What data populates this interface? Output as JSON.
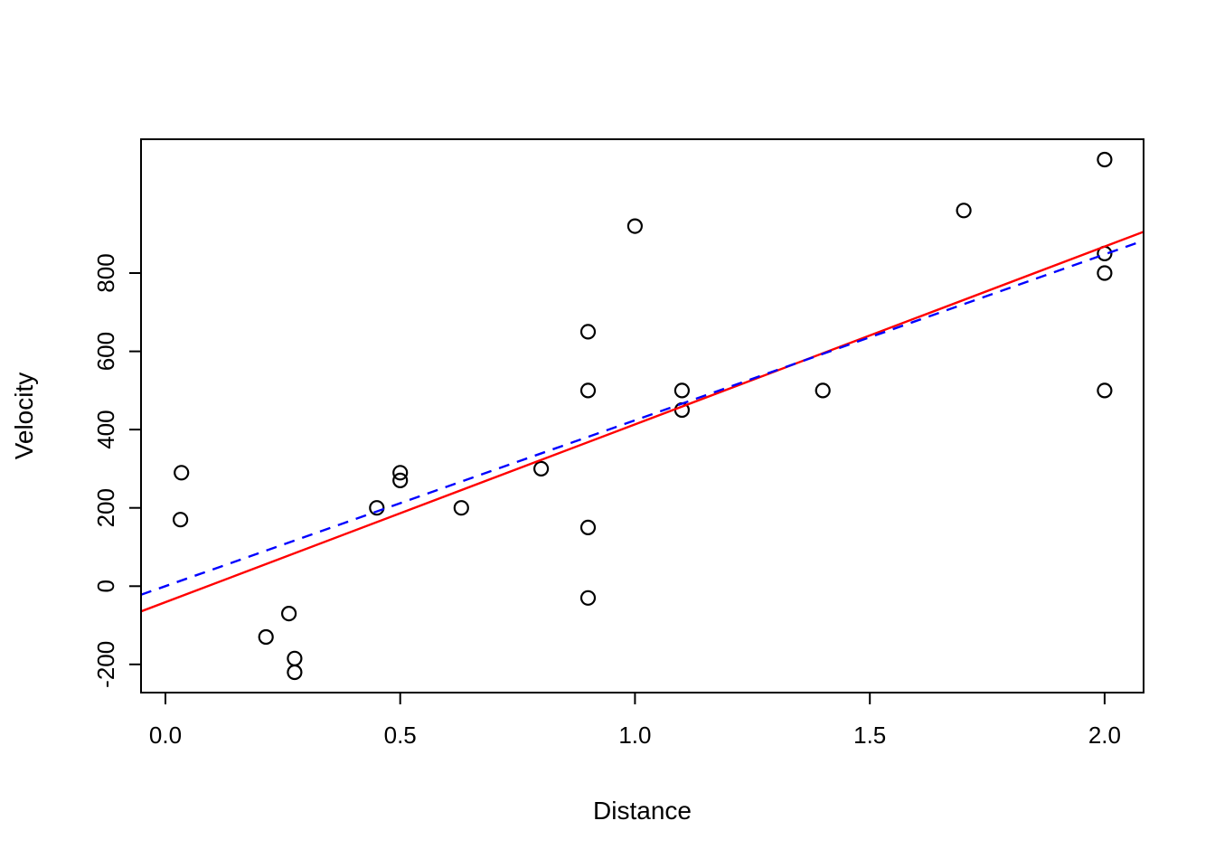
{
  "chart_data": {
    "type": "scatter",
    "title": "",
    "xlabel": "Distance",
    "ylabel": "Velocity",
    "xlim": [
      -0.052,
      2.083
    ],
    "ylim": [
      -272,
      1142
    ],
    "x_ticks": [
      0.0,
      0.5,
      1.0,
      1.5,
      2.0
    ],
    "x_tick_labels": [
      "0.0",
      "0.5",
      "1.0",
      "1.5",
      "2.0"
    ],
    "y_ticks": [
      -200,
      0,
      200,
      400,
      600,
      800
    ],
    "y_tick_labels": [
      "-200",
      "0",
      "200",
      "400",
      "600",
      "800"
    ],
    "grid": false,
    "legend": null,
    "marker": {
      "shape": "open-circle",
      "color": "#000000"
    },
    "points": {
      "x": [
        0.032,
        0.034,
        0.214,
        0.263,
        0.275,
        0.275,
        0.45,
        0.5,
        0.5,
        0.63,
        0.8,
        0.9,
        0.9,
        0.9,
        0.9,
        1.0,
        1.1,
        1.1,
        1.4,
        1.7,
        2.0,
        2.0,
        2.0,
        2.0
      ],
      "y": [
        170,
        290,
        -130,
        -70,
        -185,
        -220,
        200,
        290,
        270,
        200,
        300,
        -30,
        650,
        150,
        500,
        920,
        450,
        500,
        500,
        960,
        500,
        850,
        800,
        1090
      ]
    },
    "lines": [
      {
        "name": "red-solid-fit-line",
        "color": "#ff0000",
        "style": "solid",
        "intercept": -40.8,
        "slope": 454.2
      },
      {
        "name": "blue-dashed-fit-line",
        "color": "#0000ff",
        "style": "dashed",
        "intercept": 0,
        "slope": 423.9
      }
    ]
  }
}
